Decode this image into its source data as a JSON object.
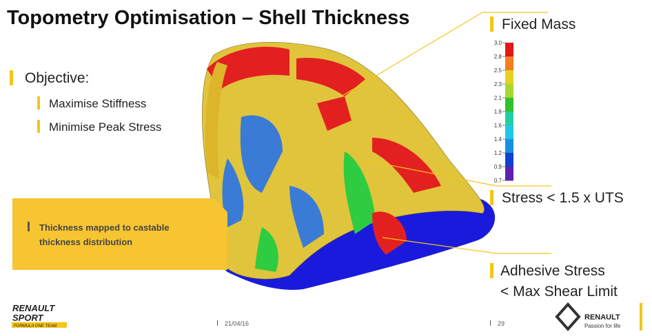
{
  "title": "Topometry Optimisation – Shell Thickness",
  "objective": {
    "heading": "Objective:",
    "items": [
      "Maximise Stiffness",
      "Minimise Peak Stress"
    ]
  },
  "callout": [
    "Thickness mapped to castable",
    "thickness distribution"
  ],
  "annotations": [
    [
      "Fixed Mass"
    ],
    [
      "Stress < 1.5 x UTS"
    ],
    [
      "Adhesive Stress",
      "< Max Shear Limit"
    ]
  ],
  "scale": [
    "3.0",
    "2.8",
    "2.5",
    "2.3",
    "2.1",
    "1.8",
    "1.6",
    "1.4",
    "1.2",
    "0.9",
    "0.7"
  ],
  "footer": {
    "brand_left": [
      "RENAULT",
      "SPORT",
      "FORMULA ONE TEAM"
    ],
    "date": "21/04/16",
    "page": "29",
    "brand_right": {
      "name": "RENAULT",
      "tagline": "Passion for life"
    }
  }
}
